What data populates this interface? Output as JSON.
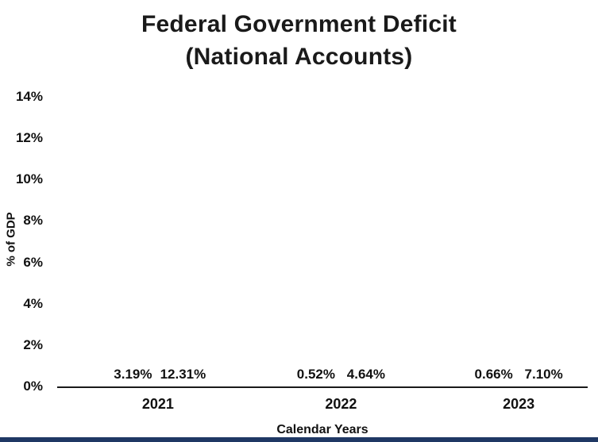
{
  "title_line1": "Federal Government Deficit",
  "title_line2": "(National Accounts)",
  "colors": {
    "bar_red": "#C00000",
    "bar_navy": "#1F3864",
    "bottom_strip": "#1F3864",
    "axis_line": "#1a1a1a"
  },
  "chart_data": {
    "type": "bar",
    "title": "Federal Government Deficit (National Accounts)",
    "categories": [
      "2021",
      "2022",
      "2023"
    ],
    "series": [
      {
        "name": "red",
        "color": "#C00000",
        "values": [
          3.19,
          0.52,
          0.66
        ],
        "labels": [
          "3.19%",
          "0.52%",
          "0.66%"
        ]
      },
      {
        "name": "navy",
        "color": "#1F3864",
        "values": [
          12.31,
          4.64,
          7.1
        ],
        "labels": [
          "12.31%",
          "4.64%",
          "7.10%"
        ]
      }
    ],
    "xlabel": "Calendar Years",
    "ylabel": "% of GDP",
    "ylim": [
      0,
      14
    ],
    "yticks": [
      {
        "value": 0,
        "label": "0%"
      },
      {
        "value": 2,
        "label": "2%"
      },
      {
        "value": 4,
        "label": "4%"
      },
      {
        "value": 6,
        "label": "6%"
      },
      {
        "value": 8,
        "label": "8%"
      },
      {
        "value": 10,
        "label": "10%"
      },
      {
        "value": 12,
        "label": "12%"
      },
      {
        "value": 14,
        "label": "14%"
      }
    ],
    "grid": false,
    "legend": "none"
  }
}
